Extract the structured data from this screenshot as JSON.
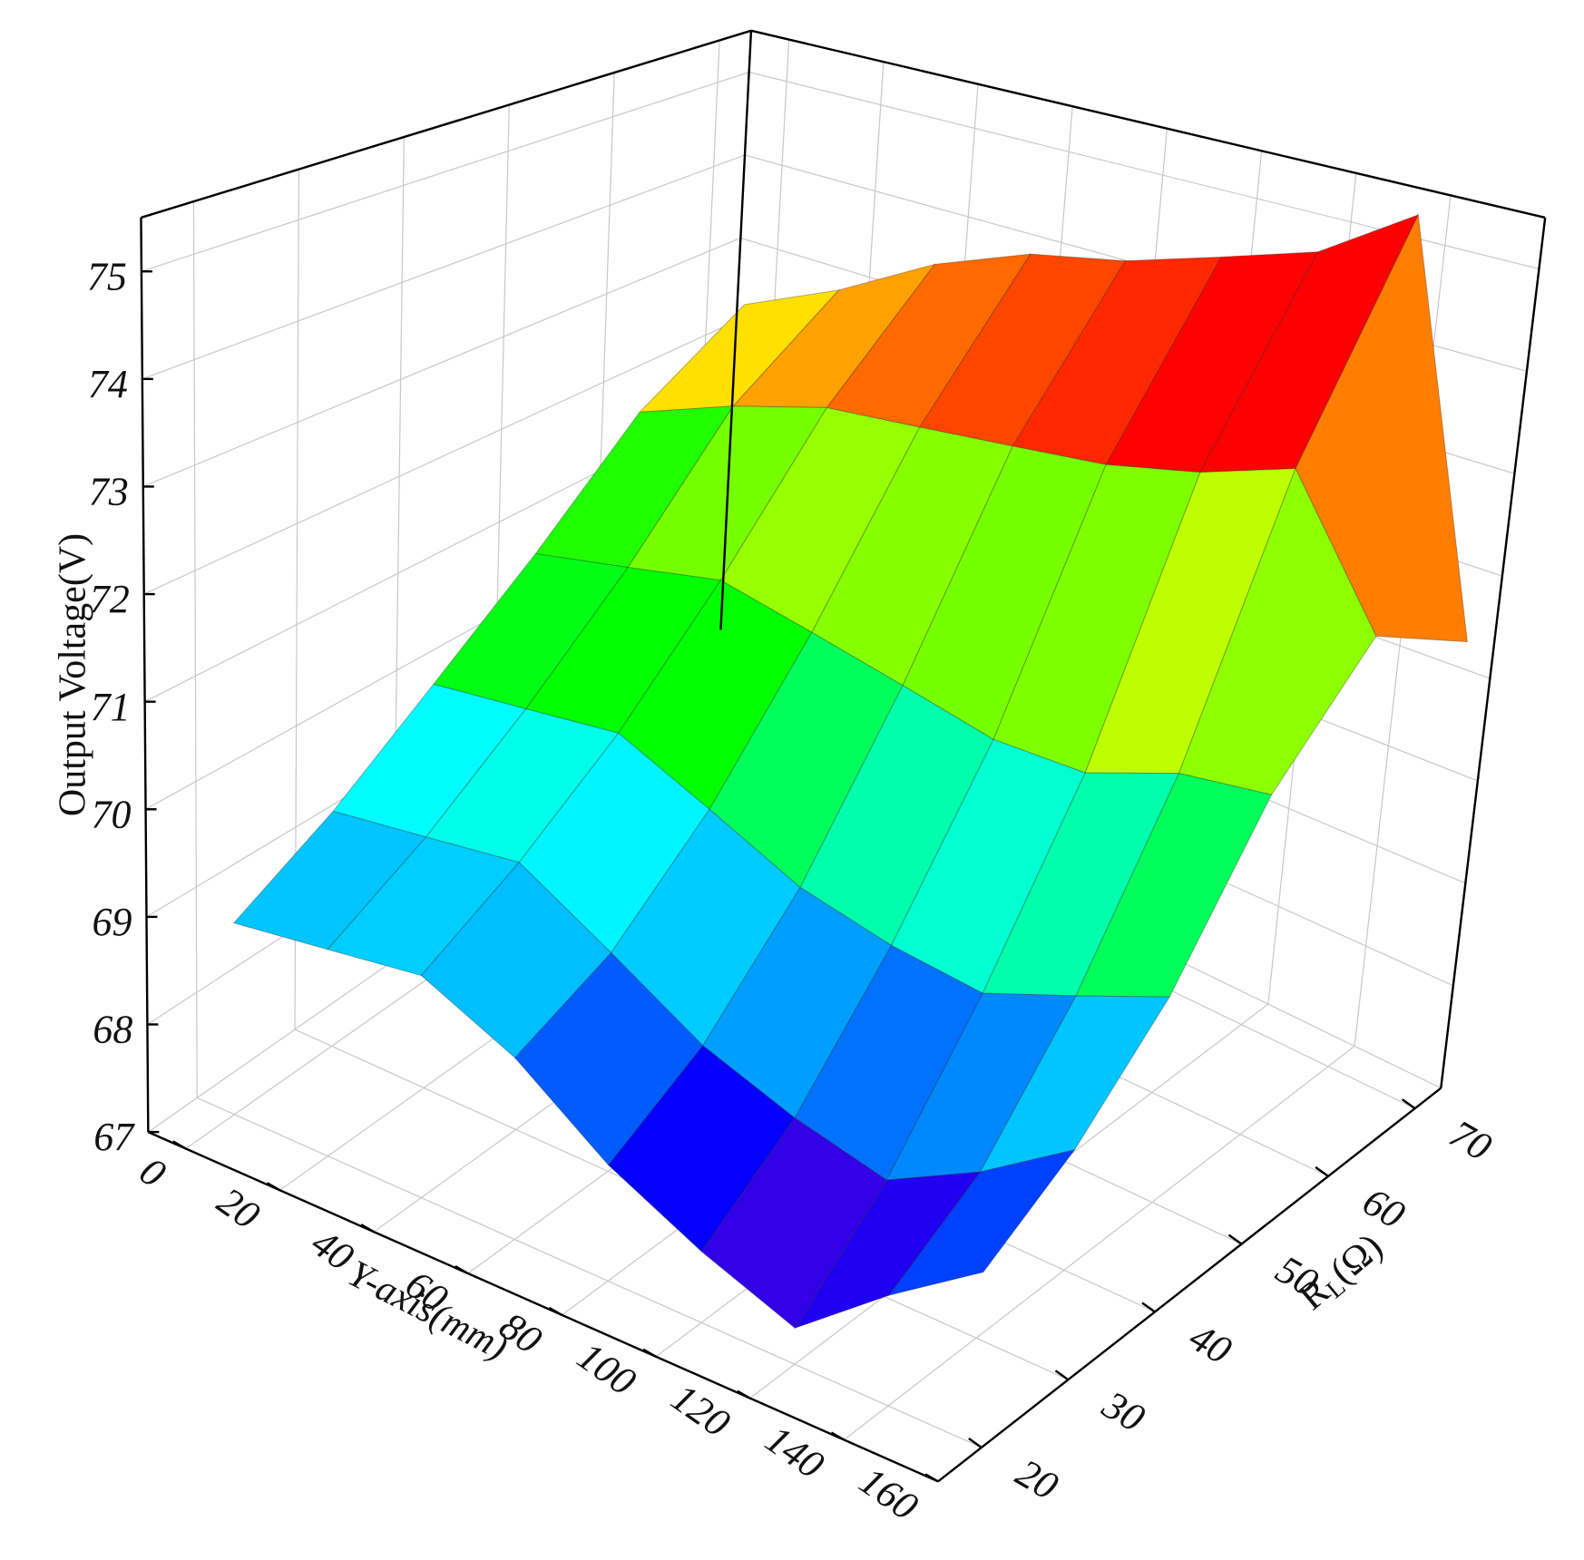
{
  "chart_data": {
    "type": "surface3d",
    "zlabel": "Output Voltage(V)",
    "ylabel": "Y-axis(mm)",
    "rlabel": {
      "main": "R",
      "sub": "L",
      "unit": "(Ω)"
    },
    "y": [
      0,
      20,
      40,
      60,
      80,
      100,
      120,
      140,
      160
    ],
    "r": [
      20,
      30,
      40,
      50,
      60,
      70
    ],
    "z": [
      [
        68.8,
        68.9,
        69.0,
        68.6,
        68.0,
        67.6,
        67.3,
        67.9,
        68.4
      ],
      [
        69.3,
        69.4,
        69.5,
        69.0,
        68.5,
        68.2,
        68.0,
        68.4,
        68.9
      ],
      [
        70.0,
        70.1,
        70.2,
        69.8,
        69.4,
        69.2,
        69.1,
        69.4,
        69.7
      ],
      [
        70.8,
        71.0,
        71.2,
        71.0,
        70.8,
        70.6,
        70.6,
        70.9,
        71.0
      ],
      [
        71.8,
        72.2,
        72.5,
        72.6,
        72.7,
        72.8,
        73.0,
        73.3,
        72.0
      ],
      [
        72.5,
        73.0,
        73.6,
        74.0,
        74.2,
        74.5,
        74.8,
        75.4,
        71.5
      ]
    ],
    "ylim": [
      -8,
      160
    ],
    "yticks": [
      0,
      20,
      40,
      60,
      80,
      100,
      120,
      140,
      160
    ],
    "rlim": [
      15,
      73
    ],
    "rticks": [
      20,
      30,
      40,
      50,
      60,
      70
    ],
    "zlim": [
      67,
      75.5
    ],
    "zticks": [
      67,
      68,
      69,
      70,
      71,
      72,
      73,
      74,
      75
    ],
    "grid": true,
    "colormap": [
      "#7a00c8",
      "#0000ff",
      "#00b4ff",
      "#00ffff",
      "#00ff00",
      "#00ff00",
      "#ffff00",
      "#ff8c00",
      "#ff0000",
      "#ff0000",
      "#800000"
    ]
  }
}
